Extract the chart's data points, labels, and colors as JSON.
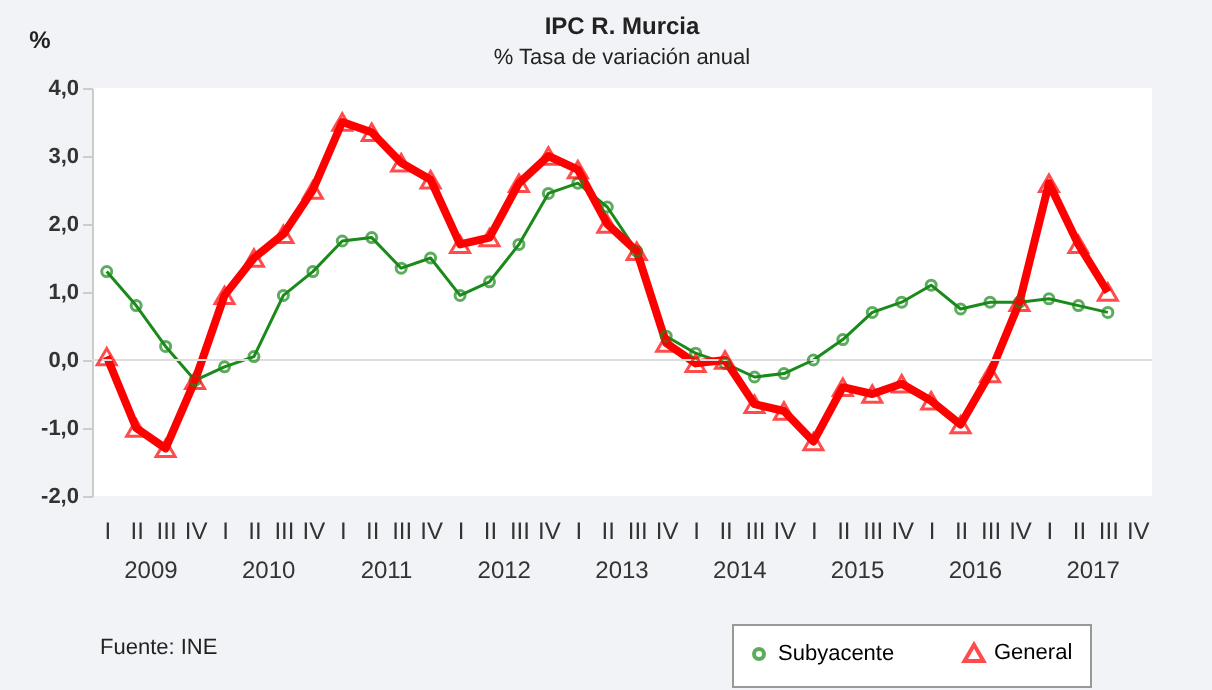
{
  "chart_data": {
    "type": "line",
    "title": "IPC R. Murcia",
    "subtitle": "% Tasa de variación anual",
    "ylabel": "%",
    "categories": [
      "I",
      "II",
      "III",
      "IV",
      "I",
      "II",
      "III",
      "IV",
      "I",
      "II",
      "III",
      "IV",
      "I",
      "II",
      "III",
      "IV",
      "I",
      "II",
      "III",
      "IV",
      "I",
      "II",
      "III",
      "IV",
      "I",
      "II",
      "III",
      "IV",
      "I",
      "II",
      "III",
      "IV",
      "I",
      "II",
      "III",
      "IV"
    ],
    "series": [
      {
        "name": "Subyacente",
        "color": "#1a8a1a",
        "marker": "circle",
        "values": [
          1.3,
          0.8,
          0.2,
          -0.3,
          -0.1,
          0.05,
          0.95,
          1.3,
          1.75,
          1.8,
          1.35,
          1.5,
          0.95,
          1.15,
          1.7,
          2.45,
          2.6,
          2.25,
          1.6,
          0.35,
          0.1,
          -0.05,
          -0.25,
          -0.2,
          0.0,
          0.3,
          0.7,
          0.85,
          1.1,
          0.75,
          0.85,
          0.85,
          0.9,
          0.8,
          0.7,
          null
        ]
      },
      {
        "name": "General",
        "color": "#ff0000",
        "marker": "triangle",
        "values": [
          0.05,
          -1.0,
          -1.3,
          -0.3,
          0.95,
          1.5,
          1.85,
          2.5,
          3.5,
          3.35,
          2.9,
          2.65,
          1.7,
          1.8,
          2.6,
          3.0,
          2.8,
          2.0,
          1.6,
          0.25,
          -0.05,
          0.0,
          -0.65,
          -0.75,
          -1.2,
          -0.4,
          -0.5,
          -0.35,
          -0.6,
          -0.95,
          -0.2,
          0.85,
          2.6,
          1.7,
          1.0,
          null
        ]
      }
    ],
    "ylim": [
      -2,
      4
    ],
    "yticks": [
      {
        "value": -2,
        "label": "-2,0"
      },
      {
        "value": -1,
        "label": "-1,0"
      },
      {
        "value": 0,
        "label": "0,0"
      },
      {
        "value": 1,
        "label": "1,0"
      },
      {
        "value": 2,
        "label": "2,0"
      },
      {
        "value": 3,
        "label": "3,0"
      },
      {
        "value": 4,
        "label": "4,0"
      }
    ],
    "ref_lines": [
      {
        "axis": "y",
        "value": 0,
        "color": "#dddddd"
      }
    ],
    "grid": false,
    "legend": "bottom right",
    "annotations": [
      "2009",
      "2010",
      "2011",
      "2012",
      "2013",
      "2014",
      "2015",
      "2016",
      "2017",
      "Fuente: INE"
    ]
  }
}
